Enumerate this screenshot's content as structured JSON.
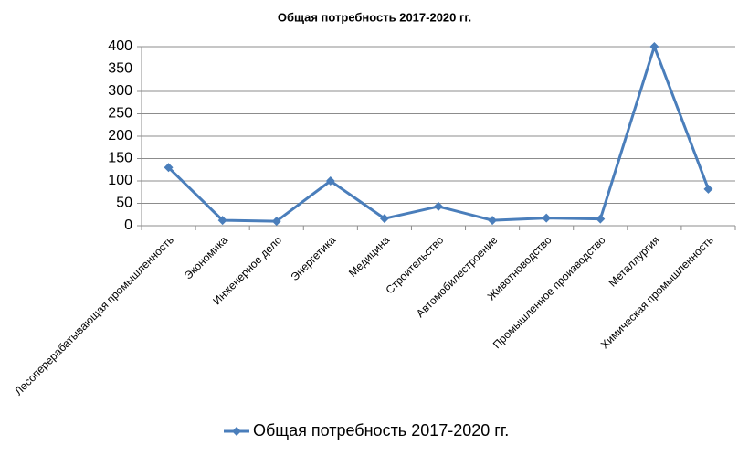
{
  "chart_data": {
    "type": "line",
    "title": "Общая потребность 2017-2020 гг.",
    "categories": [
      "Лесоперерабатывающая промышленность",
      "Экономика",
      "Инженерное дело",
      "Энергетика",
      "Медицина",
      "Строительство",
      "Автомобилестроение",
      "Животноводство",
      "Промышленное производство",
      "Металлургия",
      "Химическая промышленность"
    ],
    "series": [
      {
        "name": "Общая потребность 2017-2020 гг.",
        "color": "#4a7ebb",
        "values": [
          130,
          12,
          10,
          100,
          16,
          43,
          12,
          17,
          15,
          400,
          82
        ]
      }
    ],
    "ylim": [
      0,
      400
    ],
    "yticks": [
      0,
      50,
      100,
      150,
      200,
      250,
      300,
      350,
      400
    ],
    "grid": true,
    "legend": "bottom"
  }
}
